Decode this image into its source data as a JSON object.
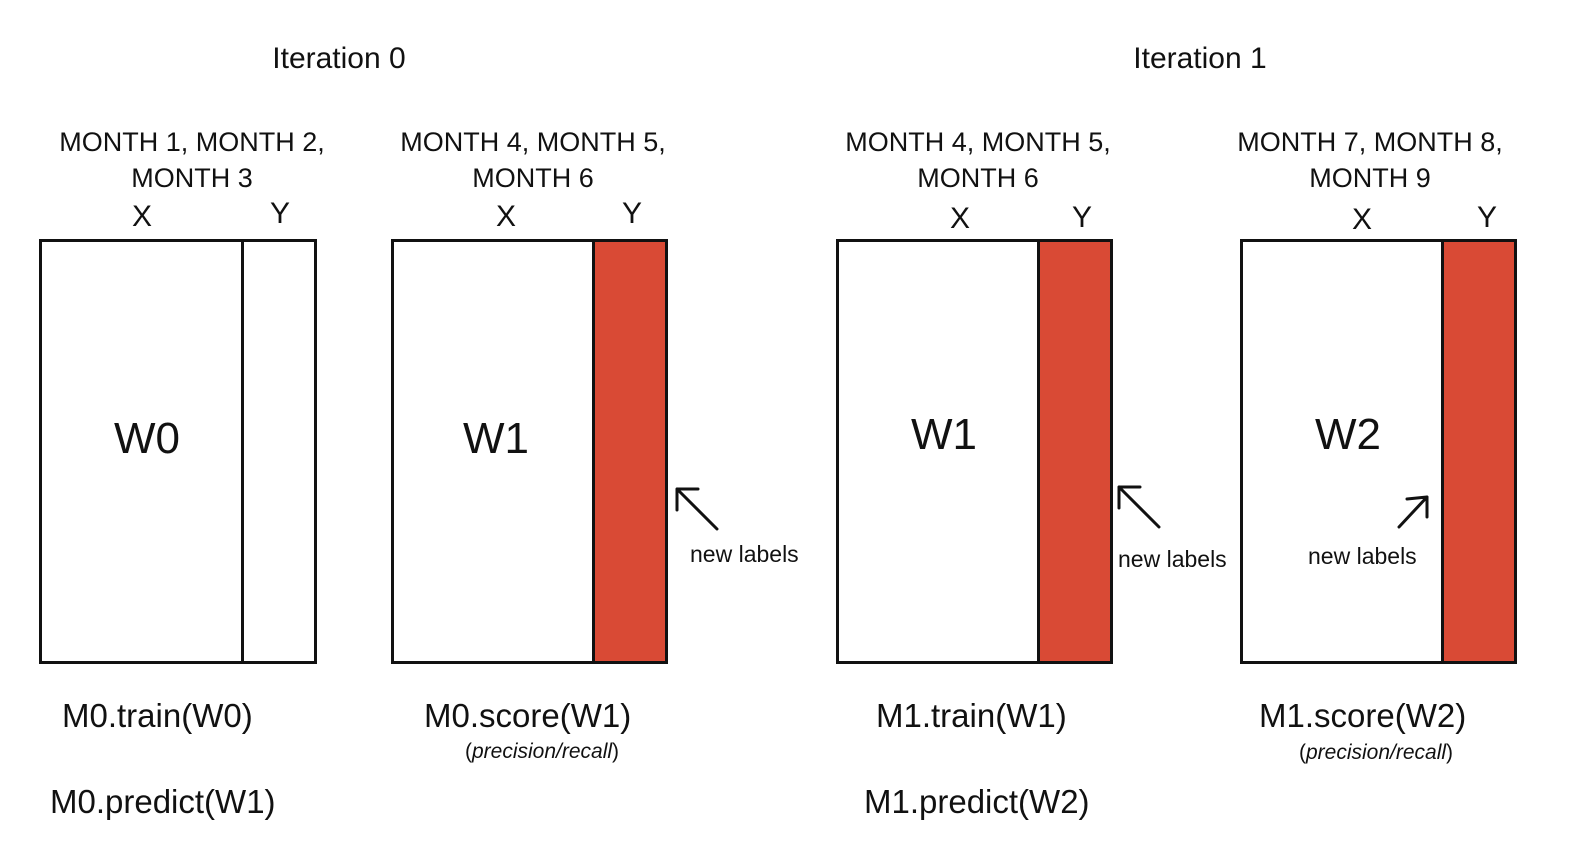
{
  "iterations": [
    {
      "title": "Iteration 0",
      "train_window": {
        "months_line1": "MONTH 1, MONTH 2,",
        "months_line2": "MONTH 3",
        "x_label": "X",
        "y_label": "Y",
        "window_label": "W0",
        "y_filled": false,
        "calls": [
          "M0.train(W0)",
          "M0.predict(W1)"
        ]
      },
      "score_window": {
        "months_line1": "MONTH 4, MONTH 5,",
        "months_line2": "MONTH 6",
        "x_label": "X",
        "y_label": "Y",
        "window_label": "W1",
        "y_filled": true,
        "note": "new labels",
        "call": "M0.score(W1)",
        "metric_open": "(",
        "metric": "precision/recall",
        "metric_close": ")"
      }
    },
    {
      "title": "Iteration 1",
      "train_window": {
        "months_line1": "MONTH 4, MONTH 5,",
        "months_line2": "MONTH 6",
        "x_label": "X",
        "y_label": "Y",
        "window_label": "W1",
        "y_filled": true,
        "note": "new labels",
        "calls": [
          "M1.train(W1)",
          "M1.predict(W2)"
        ]
      },
      "score_window": {
        "months_line1": "MONTH 7, MONTH 8,",
        "months_line2": "MONTH 9",
        "x_label": "X",
        "y_label": "Y",
        "window_label": "W2",
        "y_filled": true,
        "note": "new labels",
        "call": "M1.score(W2)",
        "metric_open": "(",
        "metric": "precision/recall",
        "metric_close": ")"
      }
    }
  ],
  "colors": {
    "label_fill": "#d94a35",
    "outline": "#111111"
  }
}
